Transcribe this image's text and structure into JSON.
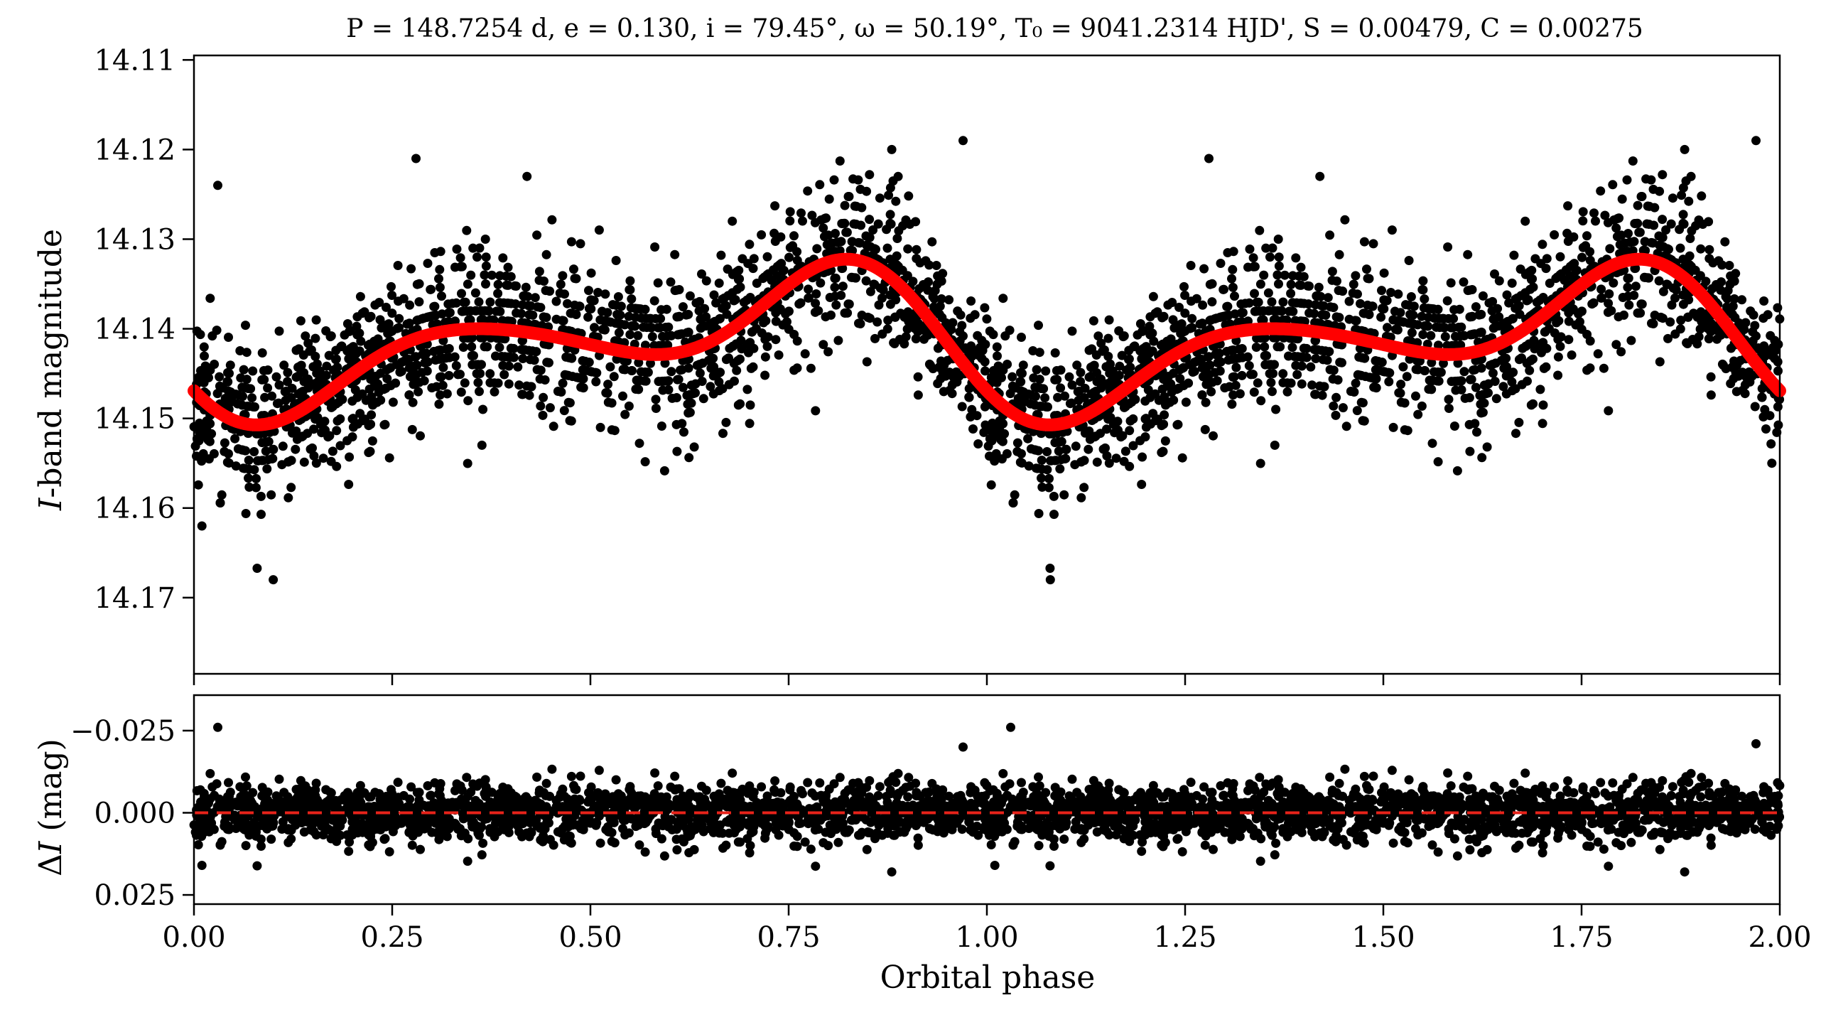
{
  "title": "P = 148.7254 d, e = 0.130, i = 79.45°, ω = 50.19°, T₀ = 9041.2314 HJD', S = 0.00479, C = 0.00275",
  "colors": {
    "points": "#000000",
    "model": "#ff0000",
    "zero_line": "#e8231a",
    "axes": "#000000"
  },
  "chart_data": [
    {
      "name": "light-curve",
      "type": "scatter",
      "xlabel": "",
      "ylabel": "I-band magnitude",
      "ylabel_italic": "I",
      "ylabel_rest": "-band magnitude",
      "xlim": [
        0.0,
        2.0
      ],
      "ylim": [
        14.1785,
        14.1095
      ],
      "y_inverted": true,
      "yticks": [
        14.11,
        14.12,
        14.13,
        14.14,
        14.15,
        14.16,
        14.17
      ],
      "ytick_labels": [
        "14.11",
        "14.12",
        "14.13",
        "14.14",
        "14.15",
        "14.16",
        "14.17"
      ],
      "grid": false,
      "model_params": {
        "mean": 14.1415,
        "ellipsoidal_amp": 0.0053,
        "secondary_amp": 0.0044,
        "asym_sin": 0.00479,
        "asym_cos": 0.00275
      },
      "series": [
        {
          "kind": "points",
          "n_per_cycle": 1700,
          "scatter_sigma": 0.0042,
          "outliers": [
            {
              "x": 0.03,
              "y": 14.124
            },
            {
              "x": 0.01,
              "y": 14.162
            },
            {
              "x": 0.1,
              "y": 14.168
            },
            {
              "x": 0.28,
              "y": 14.121
            },
            {
              "x": 0.42,
              "y": 14.123
            },
            {
              "x": 0.88,
              "y": 14.12
            },
            {
              "x": 0.97,
              "y": 14.119
            },
            {
              "x": 1.08,
              "y": 14.168
            },
            {
              "x": 1.28,
              "y": 14.121
            },
            {
              "x": 1.42,
              "y": 14.123
            },
            {
              "x": 1.88,
              "y": 14.12
            },
            {
              "x": 1.97,
              "y": 14.119
            },
            {
              "x": 1.99,
              "y": 14.155
            }
          ]
        },
        {
          "kind": "model-curve",
          "key_points": [
            {
              "x": 0.08,
              "y": 14.153
            },
            {
              "x": 0.32,
              "y": 14.135
            },
            {
              "x": 0.66,
              "y": 14.1465
            },
            {
              "x": 0.895,
              "y": 14.132
            },
            {
              "x": 1.08,
              "y": 14.153
            },
            {
              "x": 1.32,
              "y": 14.135
            },
            {
              "x": 1.66,
              "y": 14.1465
            },
            {
              "x": 1.895,
              "y": 14.132
            }
          ]
        }
      ]
    },
    {
      "name": "residuals",
      "type": "scatter",
      "xlabel": "Orbital phase",
      "ylabel": "ΔI (mag)",
      "ylabel_prefix": "Δ",
      "ylabel_italic": "I",
      "ylabel_rest": " (mag)",
      "xlim": [
        0.0,
        2.0
      ],
      "ylim": [
        0.0278,
        -0.0358
      ],
      "y_inverted": true,
      "xticks": [
        0.0,
        0.25,
        0.5,
        0.75,
        1.0,
        1.25,
        1.5,
        1.75,
        2.0
      ],
      "xtick_labels": [
        "0.00",
        "0.25",
        "0.50",
        "0.75",
        "1.00",
        "1.25",
        "1.50",
        "1.75",
        "2.00"
      ],
      "yticks": [
        -0.025,
        0.0,
        0.025
      ],
      "ytick_labels": [
        "−0.025",
        "0.000",
        "0.025"
      ],
      "zero_line": 0.0,
      "grid": false,
      "series": [
        {
          "kind": "points",
          "n_per_cycle": 1700,
          "scatter_sigma": 0.0042,
          "outliers": [
            {
              "x": 0.03,
              "y": -0.026
            },
            {
              "x": 0.01,
              "y": 0.016
            },
            {
              "x": 0.88,
              "y": 0.018
            },
            {
              "x": 0.97,
              "y": -0.02
            },
            {
              "x": 1.03,
              "y": -0.026
            },
            {
              "x": 1.01,
              "y": 0.016
            },
            {
              "x": 1.88,
              "y": 0.018
            },
            {
              "x": 1.97,
              "y": -0.021
            }
          ]
        }
      ]
    }
  ]
}
